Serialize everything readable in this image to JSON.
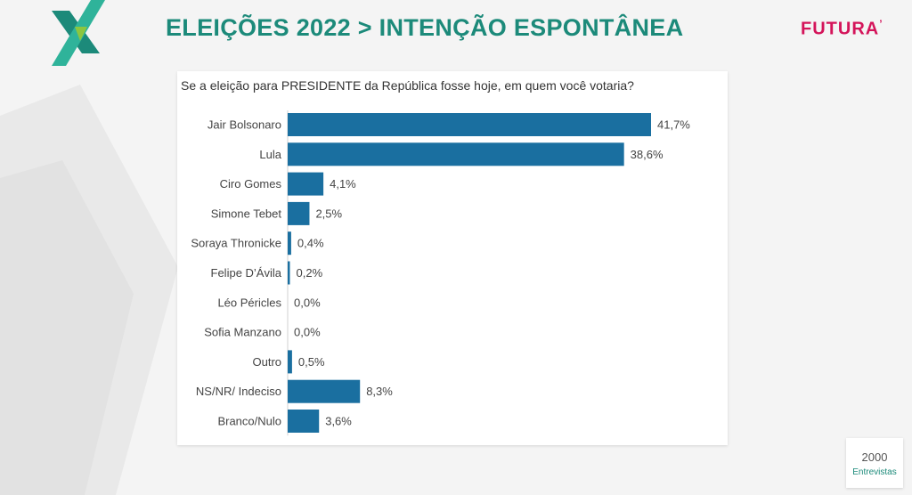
{
  "header": {
    "title": "ELEIÇÕES 2022 > INTENÇÃO ESPONTÂNEA",
    "brand": "FUTURA",
    "brand_mark": "’"
  },
  "colors": {
    "title": "#1c8a7a",
    "brand": "#d4145a",
    "bar": "#1a6fa0",
    "background": "#f4f4f4"
  },
  "sample": {
    "count": "2000",
    "label": "Entrevistas"
  },
  "chart_data": {
    "type": "bar",
    "orientation": "horizontal",
    "title": "Se a eleição para PRESIDENTE da República fosse hoje, em quem você votaria?",
    "categories": [
      "Jair Bolsonaro",
      "Lula",
      "Ciro Gomes",
      "Simone Tebet",
      "Soraya Thronicke",
      "Felipe D’Ávila",
      "Léo Péricles",
      "Sofia Manzano",
      "Outro",
      "NS/NR/ Indeciso",
      "Branco/Nulo"
    ],
    "values": [
      41.7,
      38.6,
      4.1,
      2.5,
      0.4,
      0.2,
      0.0,
      0.0,
      0.5,
      8.3,
      3.6
    ],
    "value_labels": [
      "41,7%",
      "38,6%",
      "4,1%",
      "2,5%",
      "0,4%",
      "0,2%",
      "0,0%",
      "0,0%",
      "0,5%",
      "8,3%",
      "3,6%"
    ],
    "grid": false,
    "xlim": [
      0,
      41.7
    ]
  }
}
